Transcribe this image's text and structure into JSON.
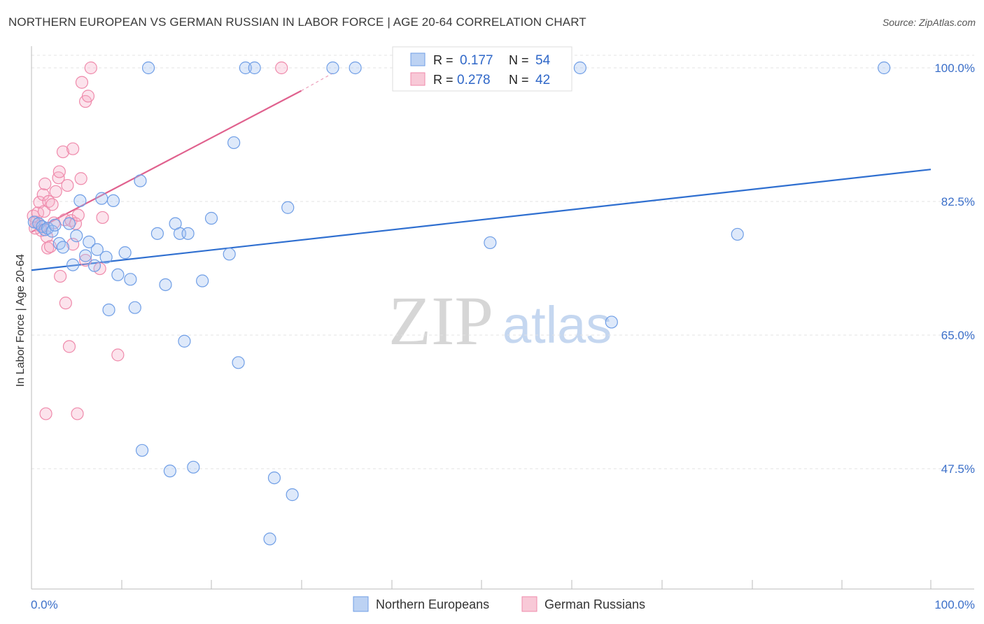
{
  "title": "NORTHERN EUROPEAN VS GERMAN RUSSIAN IN LABOR FORCE | AGE 20-64 CORRELATION CHART",
  "source": "Source: ZipAtlas.com",
  "watermark": {
    "zip": "ZIP",
    "atlas": "atlas"
  },
  "chart_data": {
    "type": "scatter",
    "xlabel": "",
    "ylabel": "In Labor Force | Age 20-64",
    "xlim": [
      0,
      100
    ],
    "ylim": [
      30,
      102
    ],
    "x_tick_labels": [
      "0.0%",
      "100.0%"
    ],
    "y_ticks": [
      47.5,
      65.0,
      82.5,
      100.0
    ],
    "y_tick_labels": [
      "47.5%",
      "65.0%",
      "82.5%",
      "100.0%"
    ],
    "colors": {
      "northern": "#6f9ee6",
      "german": "#ef8aab",
      "northern_line": "#2f6fd0",
      "german_line": "#e0618e"
    },
    "legend": {
      "rows": [
        {
          "r_label": "R =",
          "r_value": "0.177",
          "n_label": "N =",
          "n_value": "54"
        },
        {
          "r_label": "R =",
          "r_value": "0.278",
          "n_label": "N =",
          "n_value": "42"
        }
      ]
    },
    "series": [
      {
        "name": "Northern Europeans",
        "trend": {
          "x": [
            0,
            100
          ],
          "y": [
            73.5,
            86.7
          ]
        },
        "points": [
          [
            0.3,
            79.8
          ],
          [
            0.8,
            79.6
          ],
          [
            1.2,
            79.2
          ],
          [
            1.5,
            78.8
          ],
          [
            1.8,
            79.0
          ],
          [
            2.3,
            78.6
          ],
          [
            2.6,
            79.4
          ],
          [
            3.1,
            77.0
          ],
          [
            3.5,
            76.5
          ],
          [
            4.2,
            79.6
          ],
          [
            4.6,
            74.2
          ],
          [
            5.0,
            78.0
          ],
          [
            5.4,
            82.6
          ],
          [
            6.0,
            75.4
          ],
          [
            6.4,
            77.2
          ],
          [
            7.0,
            74.1
          ],
          [
            7.3,
            76.2
          ],
          [
            7.8,
            82.9
          ],
          [
            8.3,
            75.2
          ],
          [
            8.6,
            68.3
          ],
          [
            9.1,
            82.6
          ],
          [
            9.6,
            72.9
          ],
          [
            10.4,
            75.8
          ],
          [
            11.0,
            72.3
          ],
          [
            11.5,
            68.6
          ],
          [
            12.1,
            85.2
          ],
          [
            12.3,
            49.9
          ],
          [
            13.0,
            100.0
          ],
          [
            14.0,
            78.3
          ],
          [
            14.9,
            71.6
          ],
          [
            15.4,
            47.2
          ],
          [
            16.0,
            79.6
          ],
          [
            16.5,
            78.3
          ],
          [
            17.0,
            64.2
          ],
          [
            17.4,
            78.3
          ],
          [
            18.0,
            47.7
          ],
          [
            19.0,
            72.1
          ],
          [
            20.0,
            80.3
          ],
          [
            22.0,
            75.6
          ],
          [
            22.5,
            90.2
          ],
          [
            23.0,
            61.4
          ],
          [
            23.8,
            100.0
          ],
          [
            24.8,
            100.0
          ],
          [
            27.0,
            46.3
          ],
          [
            28.5,
            81.7
          ],
          [
            29.0,
            44.1
          ],
          [
            26.5,
            38.3
          ],
          [
            33.5,
            100.0
          ],
          [
            36.0,
            100.0
          ],
          [
            51.0,
            77.1
          ],
          [
            61.0,
            100.0
          ],
          [
            64.5,
            66.7
          ],
          [
            78.5,
            78.2
          ],
          [
            94.8,
            100.0
          ]
        ]
      },
      {
        "name": "German Russians",
        "trend": {
          "x": [
            0,
            30
          ],
          "y": [
            78.5,
            97.0
          ]
        },
        "trend_dashed": {
          "x": [
            30,
            33.5
          ],
          "y": [
            97.0,
            99.3
          ]
        },
        "points": [
          [
            0.2,
            80.6
          ],
          [
            0.5,
            79.8
          ],
          [
            0.7,
            81.0
          ],
          [
            0.9,
            82.4
          ],
          [
            1.0,
            79.3
          ],
          [
            1.1,
            78.7
          ],
          [
            1.3,
            83.4
          ],
          [
            1.4,
            81.2
          ],
          [
            1.5,
            84.8
          ],
          [
            1.6,
            54.7
          ],
          [
            1.7,
            77.9
          ],
          [
            1.8,
            76.4
          ],
          [
            1.9,
            82.5
          ],
          [
            2.1,
            76.6
          ],
          [
            2.3,
            82.1
          ],
          [
            2.5,
            79.7
          ],
          [
            2.7,
            83.8
          ],
          [
            3.0,
            85.6
          ],
          [
            3.1,
            86.4
          ],
          [
            3.2,
            72.7
          ],
          [
            3.5,
            89.0
          ],
          [
            3.7,
            80.1
          ],
          [
            3.8,
            69.2
          ],
          [
            4.0,
            84.6
          ],
          [
            4.2,
            63.5
          ],
          [
            4.4,
            80.0
          ],
          [
            4.6,
            76.9
          ],
          [
            4.6,
            89.4
          ],
          [
            4.9,
            79.6
          ],
          [
            5.1,
            54.7
          ],
          [
            5.2,
            80.7
          ],
          [
            5.5,
            85.5
          ],
          [
            5.6,
            98.1
          ],
          [
            6.0,
            74.8
          ],
          [
            6.0,
            95.6
          ],
          [
            6.3,
            96.3
          ],
          [
            6.6,
            100.0
          ],
          [
            7.6,
            73.7
          ],
          [
            7.9,
            80.4
          ],
          [
            9.6,
            62.4
          ],
          [
            27.8,
            100.0
          ],
          [
            0.4,
            79.0
          ]
        ]
      }
    ]
  }
}
